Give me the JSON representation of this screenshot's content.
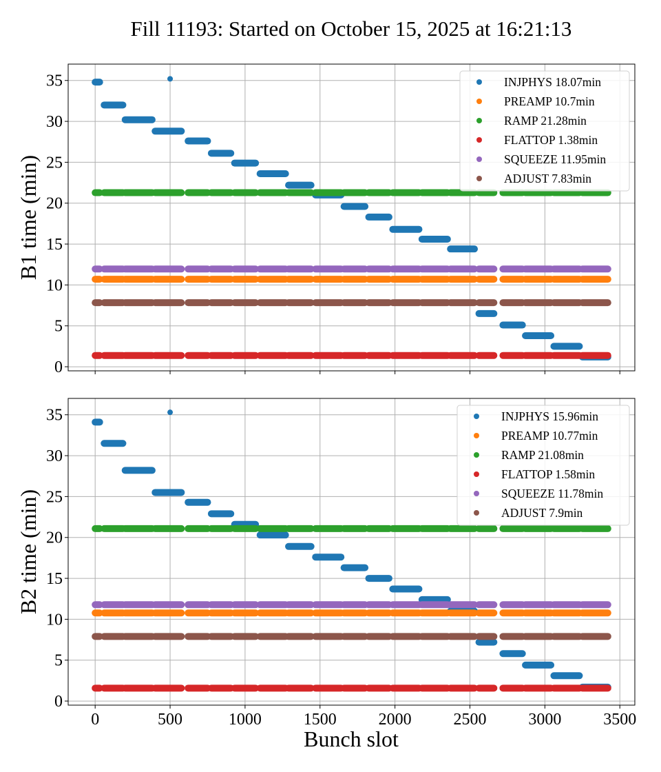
{
  "chart_data": {
    "type": "scatter",
    "title": "Fill 11193: Started on October 15, 2025 at 16:21:13",
    "xlabel": "Bunch slot",
    "xlim": [
      -180,
      3600
    ],
    "xticks": [
      0,
      500,
      1000,
      1500,
      2000,
      2500,
      3000,
      3500
    ],
    "grid": true,
    "legend_placement": "top-right",
    "segments": [
      [
        0,
        30
      ],
      [
        60,
        185
      ],
      [
        200,
        380
      ],
      [
        400,
        575
      ],
      [
        620,
        750
      ],
      [
        775,
        905
      ],
      [
        930,
        1070
      ],
      [
        1100,
        1270
      ],
      [
        1290,
        1440
      ],
      [
        1470,
        1640
      ],
      [
        1660,
        1800
      ],
      [
        1825,
        1960
      ],
      [
        1985,
        2160
      ],
      [
        2180,
        2350
      ],
      [
        2370,
        2530
      ],
      [
        2560,
        2660
      ],
      [
        2720,
        2850
      ],
      [
        2870,
        3040
      ],
      [
        3060,
        3230
      ],
      [
        3250,
        3420
      ]
    ],
    "panels": [
      {
        "ylabel": "B1 time (min)",
        "ylim": [
          -0.5,
          37
        ],
        "yticks": [
          0,
          5,
          10,
          15,
          20,
          25,
          30,
          35
        ],
        "series": [
          {
            "name": "INJPHYS",
            "legend": "INJPHYS 18.07min",
            "color": "#1f77b4",
            "values": [
              34.8,
              32.0,
              30.2,
              28.8,
              27.6,
              26.1,
              24.9,
              23.6,
              22.2,
              21.0,
              19.6,
              18.3,
              16.8,
              15.6,
              14.4,
              6.5,
              5.1,
              3.8,
              2.5,
              1.2
            ],
            "extra_points": [
              {
                "x": 500,
                "y": 35.2
              }
            ]
          },
          {
            "name": "PRERAMP",
            "legend": "PREAMP 10.7min",
            "color": "#ff7f0e",
            "level": 10.7
          },
          {
            "name": "RAMP",
            "legend": "RAMP 21.28min",
            "color": "#2ca02c",
            "level": 21.28
          },
          {
            "name": "FLATTOP",
            "legend": "FLATTOP 1.38min",
            "color": "#d62728",
            "level": 1.38
          },
          {
            "name": "SQUEEZE",
            "legend": "SQUEEZE 11.95min",
            "color": "#9467bd",
            "level": 11.95
          },
          {
            "name": "ADJUST",
            "legend": "ADJUST 7.83min",
            "color": "#8c564b",
            "level": 7.83
          }
        ]
      },
      {
        "ylabel": "B2 time (min)",
        "ylim": [
          -0.5,
          37
        ],
        "yticks": [
          0,
          5,
          10,
          15,
          20,
          25,
          30,
          35
        ],
        "series": [
          {
            "name": "INJPHYS",
            "legend": "INJPHYS 15.96min",
            "color": "#1f77b4",
            "values": [
              34.1,
              31.5,
              28.2,
              25.5,
              24.3,
              22.9,
              21.6,
              20.3,
              18.9,
              17.6,
              16.3,
              15.0,
              13.7,
              12.4,
              11.0,
              7.2,
              5.8,
              4.4,
              3.1,
              1.7
            ],
            "extra_points": [
              {
                "x": 500,
                "y": 35.3
              }
            ]
          },
          {
            "name": "PRERAMP",
            "legend": "PREAMP 10.77min",
            "color": "#ff7f0e",
            "level": 10.77
          },
          {
            "name": "RAMP",
            "legend": "RAMP 21.08min",
            "color": "#2ca02c",
            "level": 21.08
          },
          {
            "name": "FLATTOP",
            "legend": "FLATTOP 1.58min",
            "color": "#d62728",
            "level": 1.58
          },
          {
            "name": "SQUEEZE",
            "legend": "SQUEEZE 11.78min",
            "color": "#9467bd",
            "level": 11.78
          },
          {
            "name": "ADJUST",
            "legend": "ADJUST 7.9min",
            "color": "#8c564b",
            "level": 7.9
          }
        ]
      }
    ]
  }
}
